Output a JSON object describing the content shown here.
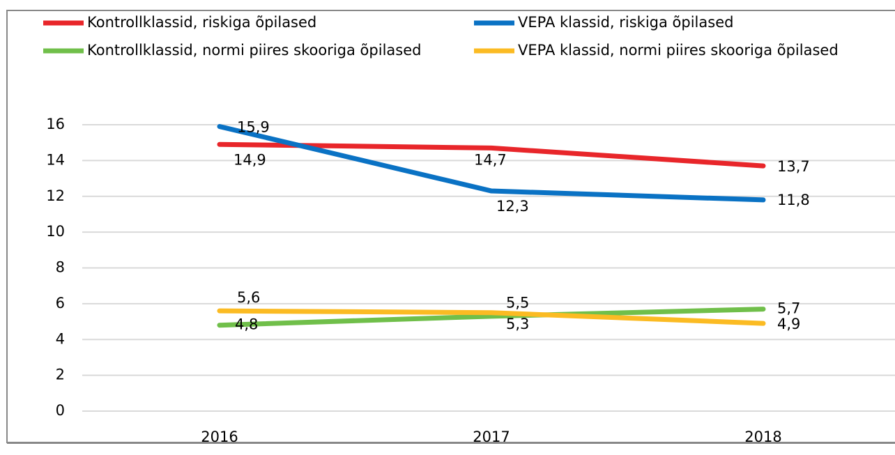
{
  "chart_data": {
    "type": "line",
    "categories": [
      "2016",
      "2017",
      "2018"
    ],
    "series": [
      {
        "name": "Kontrollklassid, riskiga õpilased",
        "color": "#e8262a",
        "values": [
          14.9,
          14.7,
          13.7
        ],
        "value_labels": [
          "14,9",
          "14,7",
          "13,7"
        ]
      },
      {
        "name": "VEPA klassid, riskiga õpilased",
        "color": "#0a72c4",
        "values": [
          15.9,
          12.3,
          11.8
        ],
        "value_labels": [
          "15,9",
          "12,3",
          "11,8"
        ]
      },
      {
        "name": "Kontrollklassid, normi piires skooriga õpilased",
        "color": "#70bf4a",
        "values": [
          4.8,
          5.3,
          5.7
        ],
        "value_labels": [
          "4,8",
          "5,3",
          "5,7"
        ]
      },
      {
        "name": "VEPA klassid, normi piires skooriga õpilased",
        "color": "#fbbb23",
        "values": [
          5.6,
          5.5,
          4.9
        ],
        "value_labels": [
          "5,6",
          "5,5",
          "4,9"
        ]
      }
    ],
    "ylim": [
      0,
      16
    ],
    "yticks": [
      0,
      2,
      4,
      6,
      8,
      10,
      12,
      14,
      16
    ],
    "grid": true,
    "legend": "top"
  }
}
